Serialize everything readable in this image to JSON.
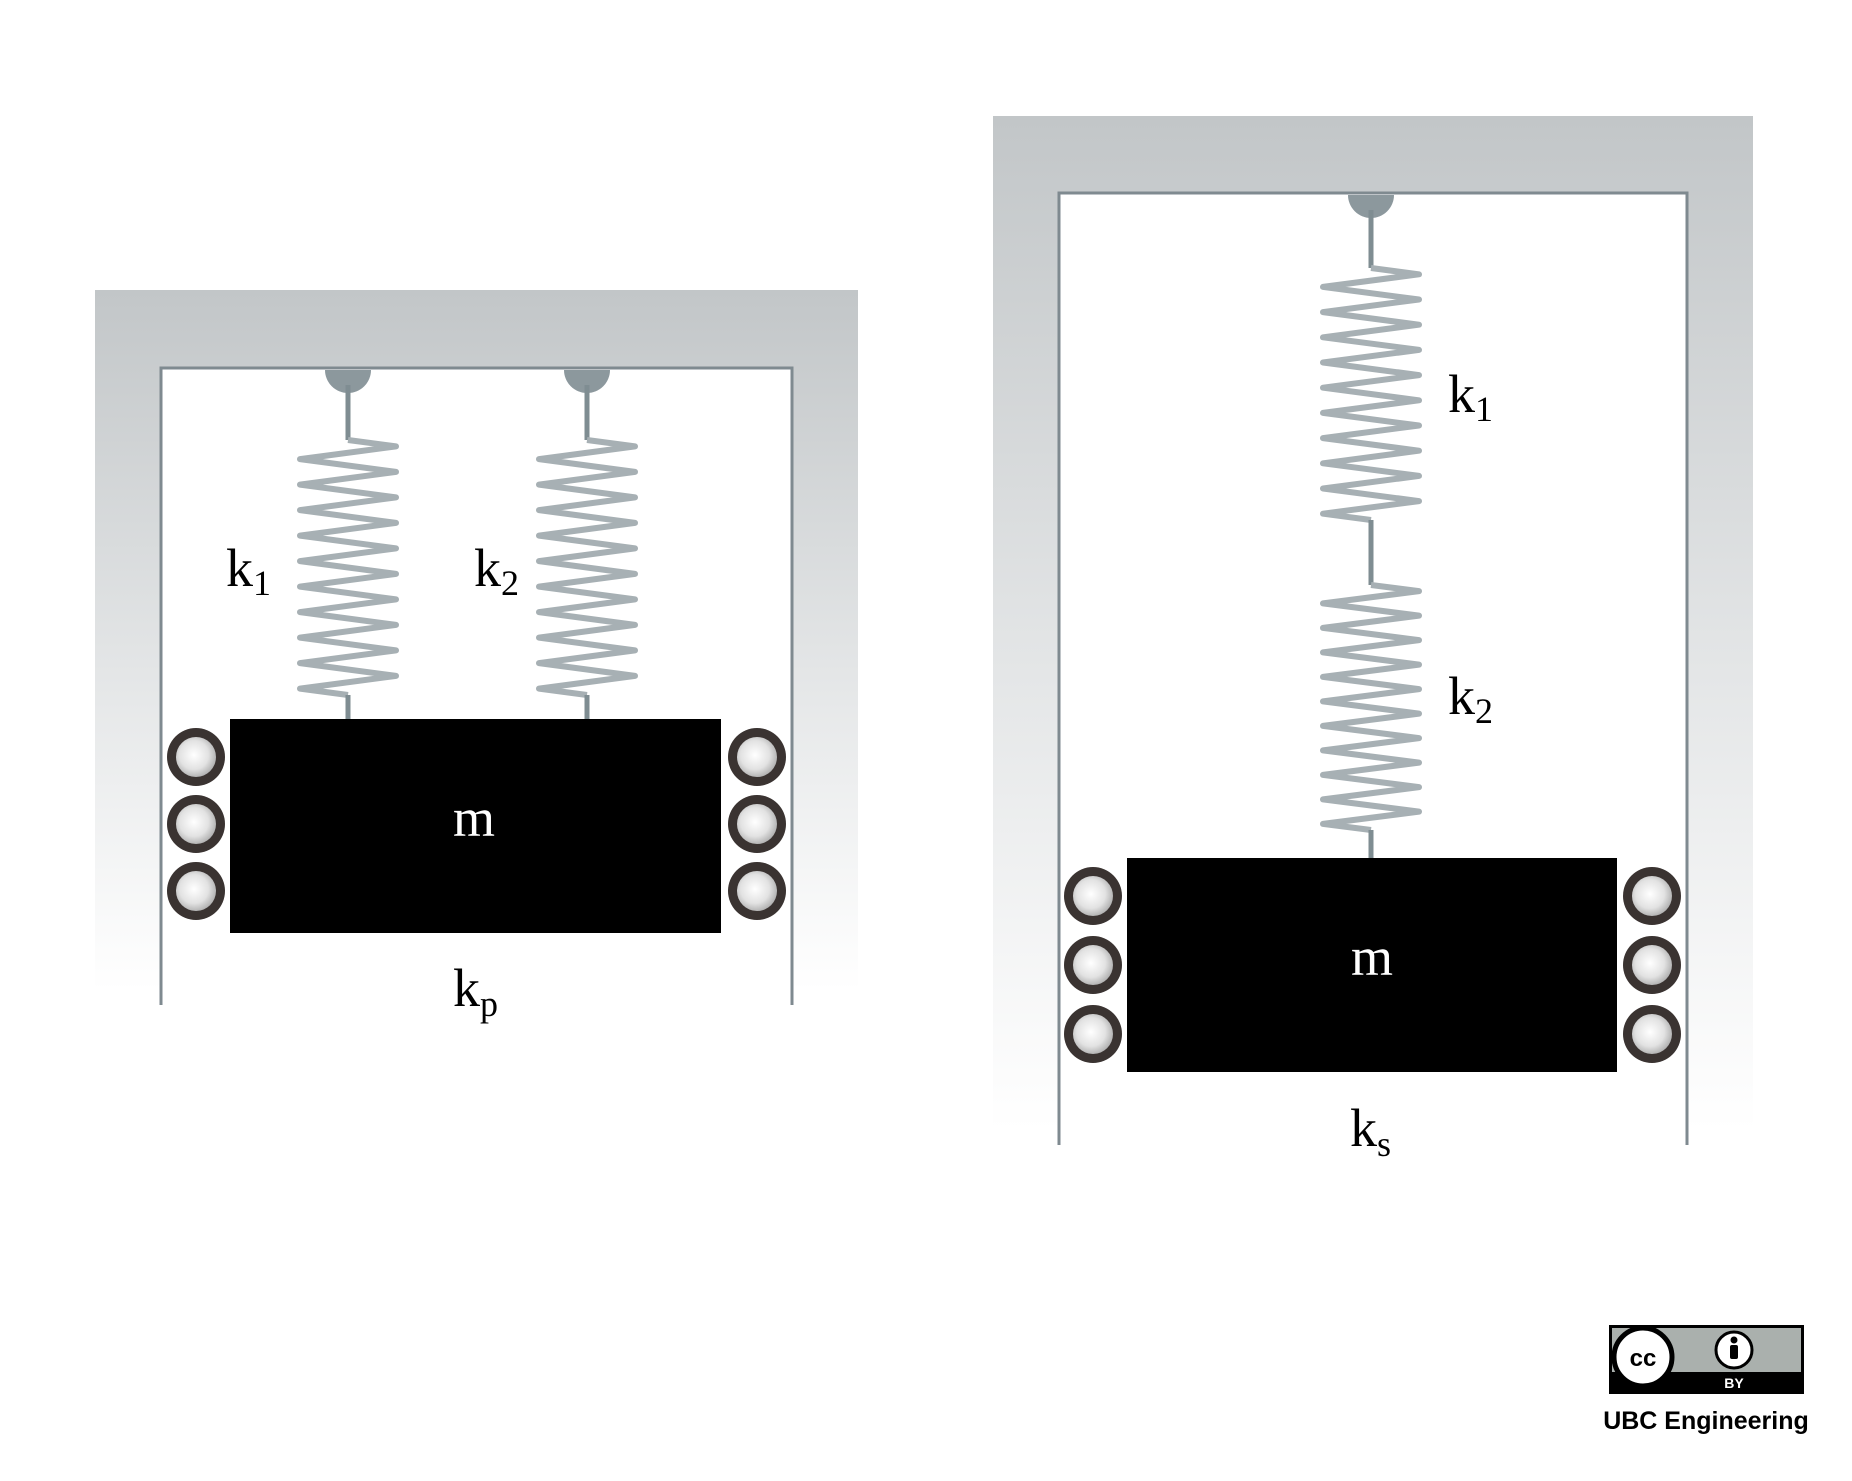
{
  "left_system": {
    "spring_1_label": "k",
    "spring_1_sub": "1",
    "spring_2_label": "k",
    "spring_2_sub": "2",
    "mass_label": "m",
    "equivalent_label": "k",
    "equivalent_sub": "p"
  },
  "right_system": {
    "spring_1_label": "k",
    "spring_1_sub": "1",
    "spring_2_label": "k",
    "spring_2_sub": "2",
    "mass_label": "m",
    "equivalent_label": "k",
    "equivalent_sub": "s"
  },
  "license": {
    "cc_text": "cc",
    "by_text": "BY",
    "credit": "UBC Engineering"
  },
  "colors": {
    "frame_gray": "#c2c6c8",
    "frame_line": "#7f8a90",
    "spring_dark": "#7f8d92",
    "spring_light": "#c7cdd0",
    "mass": "#000000",
    "roller_ring": "#3a3331",
    "roller_center": "#dcdcdc"
  }
}
